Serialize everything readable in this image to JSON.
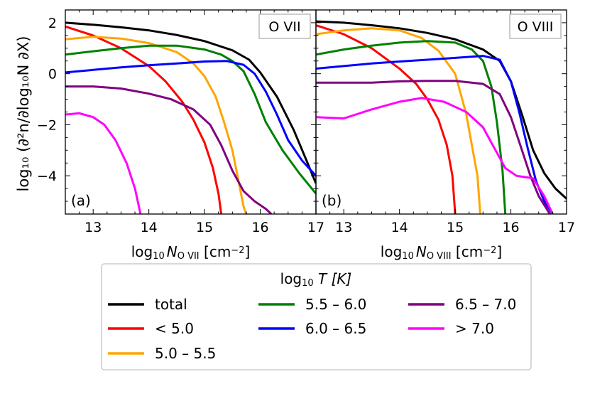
{
  "chart_data": {
    "type": "line",
    "y_label": "log₁₀ (∂²n/∂log₁₀N ∂X)",
    "ylim": [
      -5.5,
      2.5
    ],
    "y_ticks": [
      2,
      0,
      -2,
      -4
    ],
    "panels": [
      {
        "id": "a",
        "panel_label": "(a)",
        "ion_label": "O VII",
        "x_label": "log₁₀ N_O VII [cm⁻²]",
        "x_label_main": "log",
        "x_label_sub": "10",
        "x_label_N": "N",
        "x_label_ion": "O VII",
        "x_label_units": " [cm",
        "x_label_exp": "−2",
        "x_label_close": "]",
        "xlim": [
          12.5,
          17.0
        ],
        "x_ticks": [
          13,
          14,
          15,
          16,
          17
        ],
        "series": [
          {
            "name": "total",
            "color": "#000000",
            "points": [
              [
                12.5,
                2.0
              ],
              [
                13.0,
                1.92
              ],
              [
                13.5,
                1.82
              ],
              [
                14.0,
                1.7
              ],
              [
                14.5,
                1.52
              ],
              [
                15.0,
                1.28
              ],
              [
                15.5,
                0.92
              ],
              [
                15.8,
                0.55
              ],
              [
                16.0,
                0.05
              ],
              [
                16.3,
                -0.9
              ],
              [
                16.6,
                -2.2
              ],
              [
                16.85,
                -3.5
              ],
              [
                17.0,
                -4.3
              ]
            ]
          },
          {
            "name": "< 5.0",
            "color": "#ff0000",
            "points": [
              [
                12.5,
                1.85
              ],
              [
                13.0,
                1.5
              ],
              [
                13.5,
                1.0
              ],
              [
                14.0,
                0.3
              ],
              [
                14.3,
                -0.3
              ],
              [
                14.6,
                -1.1
              ],
              [
                14.8,
                -1.8
              ],
              [
                15.0,
                -2.7
              ],
              [
                15.15,
                -3.7
              ],
              [
                15.25,
                -4.7
              ],
              [
                15.3,
                -5.5
              ]
            ]
          },
          {
            "name": "5.0 – 5.5",
            "color": "#ffa500",
            "points": [
              [
                12.5,
                1.35
              ],
              [
                13.0,
                1.45
              ],
              [
                13.5,
                1.38
              ],
              [
                14.0,
                1.2
              ],
              [
                14.5,
                0.85
              ],
              [
                14.8,
                0.4
              ],
              [
                15.0,
                -0.1
              ],
              [
                15.2,
                -0.9
              ],
              [
                15.35,
                -1.9
              ],
              [
                15.5,
                -3.0
              ],
              [
                15.6,
                -4.1
              ],
              [
                15.7,
                -5.2
              ],
              [
                15.75,
                -5.5
              ]
            ]
          },
          {
            "name": "5.5 – 6.0",
            "color": "#008000",
            "points": [
              [
                12.5,
                0.75
              ],
              [
                13.0,
                0.88
              ],
              [
                13.5,
                1.0
              ],
              [
                14.0,
                1.1
              ],
              [
                14.5,
                1.1
              ],
              [
                15.0,
                0.95
              ],
              [
                15.3,
                0.75
              ],
              [
                15.5,
                0.5
              ],
              [
                15.7,
                0.1
              ],
              [
                15.9,
                -0.8
              ],
              [
                16.1,
                -1.9
              ],
              [
                16.4,
                -3.0
              ],
              [
                16.7,
                -3.9
              ],
              [
                17.0,
                -4.7
              ]
            ]
          },
          {
            "name": "6.0 – 6.5",
            "color": "#0000ff",
            "points": [
              [
                12.5,
                0.05
              ],
              [
                13.0,
                0.15
              ],
              [
                13.5,
                0.25
              ],
              [
                14.0,
                0.33
              ],
              [
                14.5,
                0.4
              ],
              [
                15.0,
                0.48
              ],
              [
                15.4,
                0.5
              ],
              [
                15.7,
                0.35
              ],
              [
                15.9,
                0.0
              ],
              [
                16.1,
                -0.7
              ],
              [
                16.3,
                -1.6
              ],
              [
                16.5,
                -2.6
              ],
              [
                16.75,
                -3.4
              ],
              [
                17.0,
                -4.0
              ]
            ]
          },
          {
            "name": "6.5 – 7.0",
            "color": "#800080",
            "points": [
              [
                12.5,
                -0.5
              ],
              [
                13.0,
                -0.5
              ],
              [
                13.5,
                -0.58
              ],
              [
                14.0,
                -0.78
              ],
              [
                14.4,
                -1.0
              ],
              [
                14.8,
                -1.4
              ],
              [
                15.1,
                -2.0
              ],
              [
                15.3,
                -2.8
              ],
              [
                15.5,
                -3.8
              ],
              [
                15.7,
                -4.6
              ],
              [
                15.9,
                -5.0
              ],
              [
                16.1,
                -5.3
              ],
              [
                16.2,
                -5.5
              ]
            ]
          },
          {
            "name": "> 7.0",
            "color": "#ff00ff",
            "points": [
              [
                12.5,
                -1.6
              ],
              [
                12.75,
                -1.55
              ],
              [
                13.0,
                -1.7
              ],
              [
                13.2,
                -2.0
              ],
              [
                13.4,
                -2.6
              ],
              [
                13.6,
                -3.5
              ],
              [
                13.75,
                -4.5
              ],
              [
                13.85,
                -5.5
              ]
            ]
          }
        ]
      },
      {
        "id": "b",
        "panel_label": "(b)",
        "ion_label": "O VIII",
        "x_label": "log₁₀ N_O VIII [cm⁻²]",
        "x_label_main": "log",
        "x_label_sub": "10",
        "x_label_N": "N",
        "x_label_ion": "O VIII",
        "x_label_units": " [cm",
        "x_label_exp": "−2",
        "x_label_close": "]",
        "xlim": [
          12.5,
          17.0
        ],
        "x_ticks": [
          13,
          14,
          15,
          16,
          17
        ],
        "series": [
          {
            "name": "total",
            "color": "#000000",
            "points": [
              [
                12.5,
                2.05
              ],
              [
                13.0,
                2.0
              ],
              [
                13.5,
                1.9
              ],
              [
                14.0,
                1.78
              ],
              [
                14.5,
                1.6
              ],
              [
                15.0,
                1.35
              ],
              [
                15.5,
                0.95
              ],
              [
                15.8,
                0.5
              ],
              [
                16.0,
                -0.3
              ],
              [
                16.2,
                -1.6
              ],
              [
                16.4,
                -3.0
              ],
              [
                16.6,
                -3.9
              ],
              [
                16.8,
                -4.5
              ],
              [
                17.0,
                -4.9
              ]
            ]
          },
          {
            "name": "< 5.0",
            "color": "#ff0000",
            "points": [
              [
                12.5,
                1.9
              ],
              [
                13.0,
                1.55
              ],
              [
                13.5,
                1.0
              ],
              [
                14.0,
                0.2
              ],
              [
                14.3,
                -0.4
              ],
              [
                14.5,
                -1.0
              ],
              [
                14.7,
                -1.8
              ],
              [
                14.85,
                -2.8
              ],
              [
                14.95,
                -4.0
              ],
              [
                15.0,
                -5.5
              ]
            ]
          },
          {
            "name": "5.0 – 5.5",
            "color": "#ffa500",
            "points": [
              [
                12.5,
                1.55
              ],
              [
                13.0,
                1.7
              ],
              [
                13.5,
                1.78
              ],
              [
                14.0,
                1.7
              ],
              [
                14.4,
                1.4
              ],
              [
                14.7,
                0.9
              ],
              [
                15.0,
                0.0
              ],
              [
                15.1,
                -0.8
              ],
              [
                15.2,
                -1.6
              ],
              [
                15.3,
                -2.8
              ],
              [
                15.4,
                -4.0
              ],
              [
                15.45,
                -5.5
              ]
            ]
          },
          {
            "name": "5.5 – 6.0",
            "color": "#008000",
            "points": [
              [
                12.5,
                0.75
              ],
              [
                13.0,
                0.95
              ],
              [
                13.5,
                1.1
              ],
              [
                14.0,
                1.22
              ],
              [
                14.5,
                1.28
              ],
              [
                15.0,
                1.22
              ],
              [
                15.3,
                0.95
              ],
              [
                15.5,
                0.5
              ],
              [
                15.65,
                -0.5
              ],
              [
                15.75,
                -1.9
              ],
              [
                15.85,
                -3.8
              ],
              [
                15.9,
                -5.5
              ]
            ]
          },
          {
            "name": "6.0 – 6.5",
            "color": "#0000ff",
            "points": [
              [
                12.5,
                0.2
              ],
              [
                13.0,
                0.3
              ],
              [
                13.5,
                0.4
              ],
              [
                14.0,
                0.48
              ],
              [
                14.5,
                0.55
              ],
              [
                15.0,
                0.62
              ],
              [
                15.5,
                0.7
              ],
              [
                15.8,
                0.55
              ],
              [
                16.0,
                -0.3
              ],
              [
                16.15,
                -1.5
              ],
              [
                16.3,
                -2.9
              ],
              [
                16.45,
                -4.2
              ],
              [
                16.6,
                -5.0
              ],
              [
                16.75,
                -5.5
              ]
            ]
          },
          {
            "name": "6.5 – 7.0",
            "color": "#800080",
            "points": [
              [
                12.5,
                -0.35
              ],
              [
                13.0,
                -0.35
              ],
              [
                13.5,
                -0.35
              ],
              [
                14.0,
                -0.3
              ],
              [
                14.5,
                -0.28
              ],
              [
                15.0,
                -0.28
              ],
              [
                15.5,
                -0.4
              ],
              [
                15.8,
                -0.8
              ],
              [
                16.0,
                -1.7
              ],
              [
                16.2,
                -3.0
              ],
              [
                16.35,
                -4.0
              ],
              [
                16.5,
                -4.8
              ],
              [
                16.7,
                -5.5
              ]
            ]
          },
          {
            "name": "> 7.0",
            "color": "#ff00ff",
            "points": [
              [
                12.5,
                -1.7
              ],
              [
                13.0,
                -1.75
              ],
              [
                13.5,
                -1.4
              ],
              [
                14.0,
                -1.1
              ],
              [
                14.4,
                -0.95
              ],
              [
                14.8,
                -1.1
              ],
              [
                15.2,
                -1.5
              ],
              [
                15.5,
                -2.1
              ],
              [
                15.7,
                -2.9
              ],
              [
                15.9,
                -3.7
              ],
              [
                16.1,
                -4.0
              ],
              [
                16.4,
                -4.1
              ],
              [
                16.6,
                -4.8
              ],
              [
                16.75,
                -5.5
              ]
            ]
          }
        ]
      }
    ],
    "legend": {
      "title_main": "log",
      "title_sub": "10",
      "title_rest": " T [K]",
      "placement": "bottom-center",
      "entries": [
        {
          "label": "total",
          "color": "#000000"
        },
        {
          "label": "< 5.0",
          "color": "#ff0000"
        },
        {
          "label": "5.0 – 5.5",
          "color": "#ffa500"
        },
        {
          "label": "5.5 – 6.0",
          "color": "#008000"
        },
        {
          "label": "6.0 – 6.5",
          "color": "#0000ff"
        },
        {
          "label": "> 7.0",
          "color": "#ff00ff"
        },
        {
          "label": "6.5 – 7.0",
          "color": "#800080"
        }
      ]
    }
  }
}
